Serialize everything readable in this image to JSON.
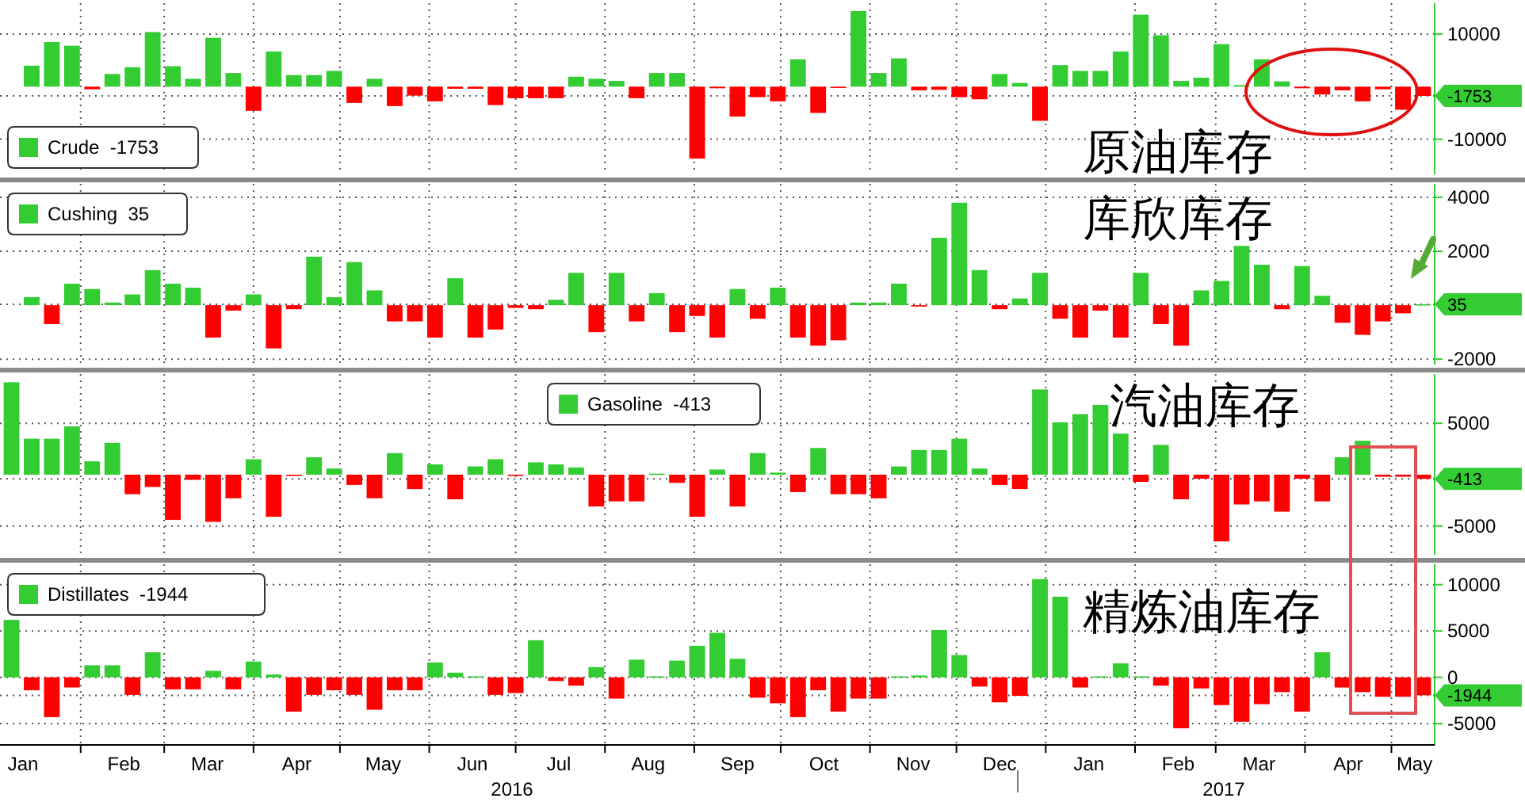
{
  "chart_data": [
    {
      "type": "bar",
      "grid": true,
      "legend": "bottom left",
      "tick_labels": "y",
      "xlim": [
        "2016-01-04",
        "2017-05-16"
      ],
      "ylim": [
        -16700,
        15900
      ],
      "yticks": [
        10000,
        {
          "value": -1753,
          "label": "-1753"
        },
        -10000
      ],
      "xticks": [
        {
          "value": "2016-02-01",
          "label": null
        },
        {
          "value": "2016-03-01",
          "label": null
        },
        {
          "value": "2016-04-01",
          "label": null
        },
        {
          "value": "2016-05-01",
          "label": null
        },
        {
          "value": "2016-06-01",
          "label": null
        },
        {
          "value": "2016-07-01",
          "label": null
        },
        {
          "value": "2016-08-01",
          "label": null
        },
        {
          "value": "2016-09-01",
          "label": null
        },
        {
          "value": "2016-10-01",
          "label": null
        },
        {
          "value": "2016-11-01",
          "label": null
        },
        {
          "value": "2016-12-01",
          "label": null
        },
        {
          "value": "2017-01-01",
          "label": null
        },
        {
          "value": "2017-02-01",
          "label": null
        },
        {
          "value": "2017-03-01",
          "label": null
        },
        {
          "value": "2017-04-01",
          "label": null
        },
        {
          "value": "2017-05-01",
          "label": null
        }
      ],
      "series": [
        {
          "name": "Crude  -1753",
          "color": "#33cc33",
          "x": [
            "2016-01-15",
            "2016-01-22",
            "2016-01-29",
            "2016-02-05",
            "2016-02-12",
            "2016-02-19",
            "2016-02-26",
            "2016-03-04",
            "2016-03-11",
            "2016-03-18",
            "2016-03-25",
            "2016-04-01",
            "2016-04-08",
            "2016-04-15",
            "2016-04-22",
            "2016-04-29",
            "2016-05-06",
            "2016-05-13",
            "2016-05-20",
            "2016-05-27",
            "2016-06-03",
            "2016-06-10",
            "2016-06-17",
            "2016-06-24",
            "2016-07-01",
            "2016-07-08",
            "2016-07-15",
            "2016-07-22",
            "2016-07-29",
            "2016-08-05",
            "2016-08-12",
            "2016-08-19",
            "2016-08-26",
            "2016-09-02",
            "2016-09-09",
            "2016-09-16",
            "2016-09-23",
            "2016-09-30",
            "2016-10-07",
            "2016-10-14",
            "2016-10-21",
            "2016-10-28",
            "2016-11-04",
            "2016-11-11",
            "2016-11-18",
            "2016-11-25",
            "2016-12-02",
            "2016-12-09",
            "2016-12-16",
            "2016-12-23",
            "2016-12-30",
            "2017-01-06",
            "2017-01-13",
            "2017-01-20",
            "2017-01-27",
            "2017-02-03",
            "2017-02-10",
            "2017-02-17",
            "2017-02-24",
            "2017-03-03",
            "2017-03-10",
            "2017-03-17",
            "2017-03-24",
            "2017-03-31",
            "2017-04-07",
            "2017-04-14",
            "2017-04-21",
            "2017-04-28",
            "2017-05-05",
            "2017-05-12"
          ],
          "values": [
            4000,
            8500,
            7800,
            -500,
            2400,
            3700,
            10400,
            3900,
            1500,
            9300,
            2600,
            -4600,
            6700,
            2200,
            2200,
            3000,
            -3100,
            1500,
            -3700,
            -1700,
            -2800,
            -400,
            -400,
            -3500,
            -2200,
            -2200,
            -2200,
            1900,
            1500,
            1100,
            -2200,
            2600,
            2600,
            -13700,
            -300,
            -5700,
            -2000,
            -2800,
            5200,
            -5000,
            -200,
            14400,
            2600,
            5400,
            -700,
            -600,
            -2000,
            -2400,
            2400,
            700,
            -6500,
            4100,
            3000,
            3000,
            6700,
            13700,
            9800,
            1100,
            1700,
            8100,
            300,
            5200,
            1000,
            -300,
            -1500,
            -700,
            -2800,
            -500,
            -4400,
            -1753
          ],
          "colors": [
            "#33cc33",
            "#33cc33",
            "#33cc33",
            "#ff0000",
            "#33cc33",
            "#33cc33",
            "#33cc33",
            "#33cc33",
            "#33cc33",
            "#33cc33",
            "#33cc33",
            "#ff0000",
            "#33cc33",
            "#33cc33",
            "#33cc33",
            "#33cc33",
            "#ff0000",
            "#33cc33",
            "#ff0000",
            "#ff0000",
            "#ff0000",
            "#ff0000",
            "#ff0000",
            "#ff0000",
            "#ff0000",
            "#ff0000",
            "#ff0000",
            "#33cc33",
            "#33cc33",
            "#33cc33",
            "#ff0000",
            "#33cc33",
            "#33cc33",
            "#ff0000",
            "#ff0000",
            "#ff0000",
            "#ff0000",
            "#ff0000",
            "#33cc33",
            "#ff0000",
            "#ff0000",
            "#33cc33",
            "#33cc33",
            "#33cc33",
            "#ff0000",
            "#ff0000",
            "#ff0000",
            "#ff0000",
            "#33cc33",
            "#33cc33",
            "#ff0000",
            "#33cc33",
            "#33cc33",
            "#33cc33",
            "#33cc33",
            "#33cc33",
            "#33cc33",
            "#33cc33",
            "#33cc33",
            "#33cc33",
            "#33cc33",
            "#33cc33",
            "#33cc33",
            "#ff0000",
            "#ff0000",
            "#ff0000",
            "#ff0000",
            "#ff0000",
            "#ff0000",
            "#ff0000"
          ]
        }
      ],
      "annotations": [
        "原油库存"
      ]
    },
    {
      "type": "bar",
      "grid": true,
      "legend": "top left",
      "tick_labels": "y",
      "xlim": [
        "2016-01-04",
        "2017-05-16"
      ],
      "ylim": [
        -2200,
        4500
      ],
      "yticks": [
        4000,
        2000,
        {
          "value": 35,
          "label": "35"
        },
        -2000
      ],
      "xticks": [
        {
          "value": "2016-02-01",
          "label": null
        },
        {
          "value": "2016-03-01",
          "label": null
        },
        {
          "value": "2016-04-01",
          "label": null
        },
        {
          "value": "2016-05-01",
          "label": null
        },
        {
          "value": "2016-06-01",
          "label": null
        },
        {
          "value": "2016-07-01",
          "label": null
        },
        {
          "value": "2016-08-01",
          "label": null
        },
        {
          "value": "2016-09-01",
          "label": null
        },
        {
          "value": "2016-10-01",
          "label": null
        },
        {
          "value": "2016-11-01",
          "label": null
        },
        {
          "value": "2016-12-01",
          "label": null
        },
        {
          "value": "2017-01-01",
          "label": null
        },
        {
          "value": "2017-02-01",
          "label": null
        },
        {
          "value": "2017-03-01",
          "label": null
        },
        {
          "value": "2017-04-01",
          "label": null
        },
        {
          "value": "2017-05-01",
          "label": null
        }
      ],
      "series": [
        {
          "name": "Cushing  35",
          "color": "#33cc33",
          "x": [
            "2016-01-15",
            "2016-01-22",
            "2016-01-29",
            "2016-02-05",
            "2016-02-12",
            "2016-02-19",
            "2016-02-26",
            "2016-03-04",
            "2016-03-11",
            "2016-03-18",
            "2016-03-25",
            "2016-04-01",
            "2016-04-08",
            "2016-04-15",
            "2016-04-22",
            "2016-04-29",
            "2016-05-06",
            "2016-05-13",
            "2016-05-20",
            "2016-05-27",
            "2016-06-03",
            "2016-06-10",
            "2016-06-17",
            "2016-06-24",
            "2016-07-01",
            "2016-07-08",
            "2016-07-15",
            "2016-07-22",
            "2016-07-29",
            "2016-08-05",
            "2016-08-12",
            "2016-08-19",
            "2016-08-26",
            "2016-09-02",
            "2016-09-09",
            "2016-09-16",
            "2016-09-23",
            "2016-09-30",
            "2016-10-07",
            "2016-10-14",
            "2016-10-21",
            "2016-10-28",
            "2016-11-04",
            "2016-11-11",
            "2016-11-18",
            "2016-11-25",
            "2016-12-02",
            "2016-12-09",
            "2016-12-16",
            "2016-12-23",
            "2016-12-30",
            "2017-01-06",
            "2017-01-13",
            "2017-01-20",
            "2017-01-27",
            "2017-02-03",
            "2017-02-10",
            "2017-02-17",
            "2017-02-24",
            "2017-03-03",
            "2017-03-10",
            "2017-03-17",
            "2017-03-24",
            "2017-03-31",
            "2017-04-07",
            "2017-04-14",
            "2017-04-21",
            "2017-04-28",
            "2017-05-05",
            "2017-05-12"
          ],
          "values": [
            300,
            -700,
            800,
            600,
            100,
            400,
            1300,
            800,
            650,
            -1200,
            -200,
            400,
            -1600,
            -150,
            1800,
            300,
            1600,
            550,
            -600,
            -600,
            -1200,
            1000,
            -1200,
            -900,
            -100,
            -150,
            200,
            1200,
            -1000,
            1200,
            -600,
            450,
            -1000,
            -400,
            -1200,
            600,
            -500,
            650,
            -1200,
            -1500,
            -1300,
            100,
            100,
            800,
            -50,
            2500,
            3800,
            1300,
            -150,
            250,
            1200,
            -500,
            -1200,
            -200,
            -1200,
            1200,
            -700,
            -1500,
            550,
            900,
            2200,
            1500,
            -150,
            1450,
            350,
            -650,
            -1100,
            -600,
            -300,
            35
          ],
          "colors": [
            "#33cc33",
            "#ff0000",
            "#33cc33",
            "#33cc33",
            "#33cc33",
            "#33cc33",
            "#33cc33",
            "#33cc33",
            "#33cc33",
            "#ff0000",
            "#ff0000",
            "#33cc33",
            "#ff0000",
            "#ff0000",
            "#33cc33",
            "#33cc33",
            "#33cc33",
            "#33cc33",
            "#ff0000",
            "#ff0000",
            "#ff0000",
            "#33cc33",
            "#ff0000",
            "#ff0000",
            "#ff0000",
            "#ff0000",
            "#33cc33",
            "#33cc33",
            "#ff0000",
            "#33cc33",
            "#ff0000",
            "#33cc33",
            "#ff0000",
            "#ff0000",
            "#ff0000",
            "#33cc33",
            "#ff0000",
            "#33cc33",
            "#ff0000",
            "#ff0000",
            "#ff0000",
            "#33cc33",
            "#33cc33",
            "#33cc33",
            "#ff0000",
            "#33cc33",
            "#33cc33",
            "#33cc33",
            "#ff0000",
            "#33cc33",
            "#33cc33",
            "#ff0000",
            "#ff0000",
            "#ff0000",
            "#ff0000",
            "#33cc33",
            "#ff0000",
            "#ff0000",
            "#33cc33",
            "#33cc33",
            "#33cc33",
            "#33cc33",
            "#ff0000",
            "#33cc33",
            "#33cc33",
            "#ff0000",
            "#ff0000",
            "#ff0000",
            "#ff0000",
            "#33cc33"
          ]
        }
      ],
      "annotations": [
        "库欣库存"
      ]
    },
    {
      "type": "bar",
      "grid": true,
      "legend": "top",
      "tick_labels": "y",
      "xlim": [
        "2016-01-04",
        "2017-05-16"
      ],
      "ylim": [
        -7800,
        9800
      ],
      "yticks": [
        5000,
        {
          "value": -413,
          "label": "-413"
        },
        -5000
      ],
      "xticks": [
        {
          "value": "2016-02-01",
          "label": null
        },
        {
          "value": "2016-03-01",
          "label": null
        },
        {
          "value": "2016-04-01",
          "label": null
        },
        {
          "value": "2016-05-01",
          "label": null
        },
        {
          "value": "2016-06-01",
          "label": null
        },
        {
          "value": "2016-07-01",
          "label": null
        },
        {
          "value": "2016-08-01",
          "label": null
        },
        {
          "value": "2016-09-01",
          "label": null
        },
        {
          "value": "2016-10-01",
          "label": null
        },
        {
          "value": "2016-11-01",
          "label": null
        },
        {
          "value": "2016-12-01",
          "label": null
        },
        {
          "value": "2017-01-01",
          "label": null
        },
        {
          "value": "2017-02-01",
          "label": null
        },
        {
          "value": "2017-03-01",
          "label": null
        },
        {
          "value": "2017-04-01",
          "label": null
        },
        {
          "value": "2017-05-01",
          "label": null
        }
      ],
      "x": [
        "2016-01-08",
        "2016-01-15",
        "2016-01-22",
        "2016-01-29",
        "2016-02-05",
        "2016-02-12",
        "2016-02-19",
        "2016-02-26",
        "2016-03-04",
        "2016-03-11",
        "2016-03-18",
        "2016-03-25",
        "2016-04-01",
        "2016-04-08",
        "2016-04-15",
        "2016-04-22",
        "2016-04-29",
        "2016-05-06",
        "2016-05-13",
        "2016-05-20",
        "2016-05-27",
        "2016-06-03",
        "2016-06-10",
        "2016-06-17",
        "2016-06-24",
        "2016-07-01",
        "2016-07-08",
        "2016-07-15",
        "2016-07-22",
        "2016-07-29",
        "2016-08-05",
        "2016-08-12",
        "2016-08-19",
        "2016-08-26",
        "2016-09-02",
        "2016-09-09",
        "2016-09-16",
        "2016-09-23",
        "2016-09-30",
        "2016-10-07",
        "2016-10-14",
        "2016-10-21",
        "2016-10-28",
        "2016-11-04",
        "2016-11-11",
        "2016-11-18",
        "2016-11-25",
        "2016-12-02",
        "2016-12-09",
        "2016-12-16",
        "2016-12-23",
        "2016-12-30",
        "2017-01-06",
        "2017-01-13",
        "2017-01-20",
        "2017-01-27",
        "2017-02-03",
        "2017-02-10",
        "2017-02-17",
        "2017-02-24",
        "2017-03-03",
        "2017-03-10",
        "2017-03-17",
        "2017-03-24",
        "2017-03-31",
        "2017-04-07",
        "2017-04-14",
        "2017-04-21",
        "2017-04-28",
        "2017-05-05",
        "2017-05-12"
      ],
      "series": [
        {
          "name": "Gasoline  -413",
          "color": "#33cc33",
          "values": [
            9000,
            3500,
            3500,
            4700,
            1300,
            3100,
            -1900,
            -1200,
            -4400,
            -500,
            -4600,
            -2300,
            1500,
            -4100,
            -100,
            1700,
            600,
            -1000,
            -2300,
            2100,
            -1400,
            1000,
            -2400,
            800,
            1500,
            -100,
            1200,
            1000,
            700,
            -3100,
            -2600,
            -2600,
            100,
            -800,
            -4100,
            500,
            -3100,
            2100,
            200,
            -1700,
            2600,
            -1900,
            -1900,
            -2300,
            800,
            2400,
            2400,
            3500,
            600,
            -1000,
            -1400,
            8300,
            5100,
            5900,
            6800,
            4000,
            -700,
            2900,
            -2400,
            -400,
            -6500,
            -2900,
            -2600,
            -3600,
            -400,
            -2600,
            1700,
            3300,
            -200,
            -200,
            -413
          ],
          "colors": [
            "#33cc33",
            "#33cc33",
            "#33cc33",
            "#33cc33",
            "#33cc33",
            "#33cc33",
            "#ff0000",
            "#ff0000",
            "#ff0000",
            "#ff0000",
            "#ff0000",
            "#ff0000",
            "#33cc33",
            "#ff0000",
            "#ff0000",
            "#33cc33",
            "#33cc33",
            "#ff0000",
            "#ff0000",
            "#33cc33",
            "#ff0000",
            "#33cc33",
            "#ff0000",
            "#33cc33",
            "#33cc33",
            "#ff0000",
            "#33cc33",
            "#33cc33",
            "#33cc33",
            "#ff0000",
            "#ff0000",
            "#ff0000",
            "#33cc33",
            "#ff0000",
            "#ff0000",
            "#33cc33",
            "#ff0000",
            "#33cc33",
            "#33cc33",
            "#ff0000",
            "#33cc33",
            "#ff0000",
            "#ff0000",
            "#ff0000",
            "#33cc33",
            "#33cc33",
            "#33cc33",
            "#33cc33",
            "#33cc33",
            "#ff0000",
            "#ff0000",
            "#33cc33",
            "#33cc33",
            "#33cc33",
            "#33cc33",
            "#33cc33",
            "#ff0000",
            "#33cc33",
            "#ff0000",
            "#ff0000",
            "#ff0000",
            "#ff0000",
            "#ff0000",
            "#ff0000",
            "#ff0000",
            "#ff0000",
            "#33cc33",
            "#33cc33",
            "#ff0000",
            "#ff0000",
            "#ff0000"
          ]
        }
      ],
      "annotations": [
        "汽油库存"
      ]
    },
    {
      "type": "bar",
      "grid": true,
      "legend": "top left",
      "xlim": [
        "2016-01-04",
        "2017-05-16"
      ],
      "ylim": [
        -7300,
        12200
      ],
      "yticks": [
        10000,
        5000,
        0,
        {
          "value": -1944,
          "label": "-1944"
        },
        -5000
      ],
      "xticks": [
        {
          "value": "2016-01-12",
          "label": "Jan"
        },
        {
          "value": "2016-02-01",
          "label": null
        },
        {
          "value": "2016-02-16",
          "label": "Feb"
        },
        {
          "value": "2016-03-01",
          "label": null
        },
        {
          "value": "2016-03-16",
          "label": "Mar"
        },
        {
          "value": "2016-04-01",
          "label": null
        },
        {
          "value": "2016-04-16",
          "label": "Apr"
        },
        {
          "value": "2016-05-01",
          "label": null
        },
        {
          "value": "2016-05-16",
          "label": "May"
        },
        {
          "value": "2016-06-01",
          "label": null
        },
        {
          "value": "2016-06-16",
          "label": "Jun"
        },
        {
          "value": "2016-07-01",
          "label": null
        },
        {
          "value": "2016-07-16",
          "label": "Jul"
        },
        {
          "value": "2016-08-01",
          "label": null
        },
        {
          "value": "2016-08-16",
          "label": "Aug"
        },
        {
          "value": "2016-09-01",
          "label": null
        },
        {
          "value": "2016-09-16",
          "label": "Sep"
        },
        {
          "value": "2016-10-01",
          "label": null
        },
        {
          "value": "2016-10-16",
          "label": "Oct"
        },
        {
          "value": "2016-11-01",
          "label": null
        },
        {
          "value": "2016-11-16",
          "label": "Nov"
        },
        {
          "value": "2016-12-01",
          "label": null
        },
        {
          "value": "2016-12-16",
          "label": "Dec"
        },
        {
          "value": "2017-01-01",
          "label": null
        },
        {
          "value": "2017-01-16",
          "label": "Jan"
        },
        {
          "value": "2017-02-01",
          "label": null
        },
        {
          "value": "2017-02-16",
          "label": "Feb"
        },
        {
          "value": "2017-03-01",
          "label": null
        },
        {
          "value": "2017-03-16",
          "label": "Mar"
        },
        {
          "value": "2017-04-01",
          "label": null
        },
        {
          "value": "2017-04-16",
          "label": "Apr"
        },
        {
          "value": "2017-05-01",
          "label": null
        },
        {
          "value": "2017-05-09",
          "label": "May"
        }
      ],
      "x": [
        "2016-01-08",
        "2016-01-15",
        "2016-01-22",
        "2016-01-29",
        "2016-02-05",
        "2016-02-12",
        "2016-02-19",
        "2016-02-26",
        "2016-03-04",
        "2016-03-11",
        "2016-03-18",
        "2016-03-25",
        "2016-04-01",
        "2016-04-08",
        "2016-04-15",
        "2016-04-22",
        "2016-04-29",
        "2016-05-06",
        "2016-05-13",
        "2016-05-20",
        "2016-05-27",
        "2016-06-03",
        "2016-06-10",
        "2016-06-17",
        "2016-06-24",
        "2016-07-01",
        "2016-07-08",
        "2016-07-15",
        "2016-07-22",
        "2016-07-29",
        "2016-08-05",
        "2016-08-12",
        "2016-08-19",
        "2016-08-26",
        "2016-09-02",
        "2016-09-09",
        "2016-09-16",
        "2016-09-23",
        "2016-09-30",
        "2016-10-07",
        "2016-10-14",
        "2016-10-21",
        "2016-10-28",
        "2016-11-04",
        "2016-11-11",
        "2016-11-18",
        "2016-11-25",
        "2016-12-02",
        "2016-12-09",
        "2016-12-16",
        "2016-12-23",
        "2016-12-30",
        "2017-01-06",
        "2017-01-13",
        "2017-01-20",
        "2017-01-27",
        "2017-02-03",
        "2017-02-10",
        "2017-02-17",
        "2017-02-24",
        "2017-03-03",
        "2017-03-10",
        "2017-03-17",
        "2017-03-24",
        "2017-03-31",
        "2017-04-07",
        "2017-04-14",
        "2017-04-21",
        "2017-04-28",
        "2017-05-05",
        "2017-05-12"
      ],
      "series": [
        {
          "name": "Distillates  -1944",
          "color": "#33cc33",
          "values": [
            6200,
            -1400,
            -4300,
            -1100,
            1300,
            1300,
            -1900,
            2700,
            -1300,
            -1300,
            700,
            -1300,
            1700,
            300,
            -3700,
            -1900,
            -1400,
            -1900,
            -3500,
            -1400,
            -1400,
            1600,
            500,
            100,
            -1900,
            -1700,
            4000,
            -400,
            -900,
            1100,
            -2300,
            1900,
            100,
            1800,
            3400,
            4800,
            2000,
            -2200,
            -2800,
            -4300,
            -1400,
            -3700,
            -2300,
            -2300,
            100,
            200,
            5100,
            2400,
            -1000,
            -2700,
            -2000,
            10600,
            8700,
            -1100,
            100,
            1500,
            100,
            -900,
            -5500,
            -1200,
            -3000,
            -4800,
            -2900,
            -1600,
            -3700,
            2700,
            -1100,
            -1600,
            -2100,
            -2100,
            -1944
          ],
          "colors": [
            "#33cc33",
            "#ff0000",
            "#ff0000",
            "#ff0000",
            "#33cc33",
            "#33cc33",
            "#ff0000",
            "#33cc33",
            "#ff0000",
            "#ff0000",
            "#33cc33",
            "#ff0000",
            "#33cc33",
            "#33cc33",
            "#ff0000",
            "#ff0000",
            "#ff0000",
            "#ff0000",
            "#ff0000",
            "#ff0000",
            "#ff0000",
            "#33cc33",
            "#33cc33",
            "#33cc33",
            "#ff0000",
            "#ff0000",
            "#33cc33",
            "#ff0000",
            "#ff0000",
            "#33cc33",
            "#ff0000",
            "#33cc33",
            "#33cc33",
            "#33cc33",
            "#33cc33",
            "#33cc33",
            "#33cc33",
            "#ff0000",
            "#ff0000",
            "#ff0000",
            "#ff0000",
            "#ff0000",
            "#ff0000",
            "#ff0000",
            "#33cc33",
            "#33cc33",
            "#33cc33",
            "#33cc33",
            "#ff0000",
            "#ff0000",
            "#ff0000",
            "#33cc33",
            "#33cc33",
            "#ff0000",
            "#33cc33",
            "#33cc33",
            "#33cc33",
            "#ff0000",
            "#ff0000",
            "#ff0000",
            "#ff0000",
            "#ff0000",
            "#ff0000",
            "#ff0000",
            "#ff0000",
            "#33cc33",
            "#ff0000",
            "#ff0000",
            "#ff0000",
            "#ff0000",
            "#ff0000"
          ]
        }
      ],
      "annotations": [
        "精炼油库存",
        "2016",
        "2017"
      ]
    }
  ]
}
